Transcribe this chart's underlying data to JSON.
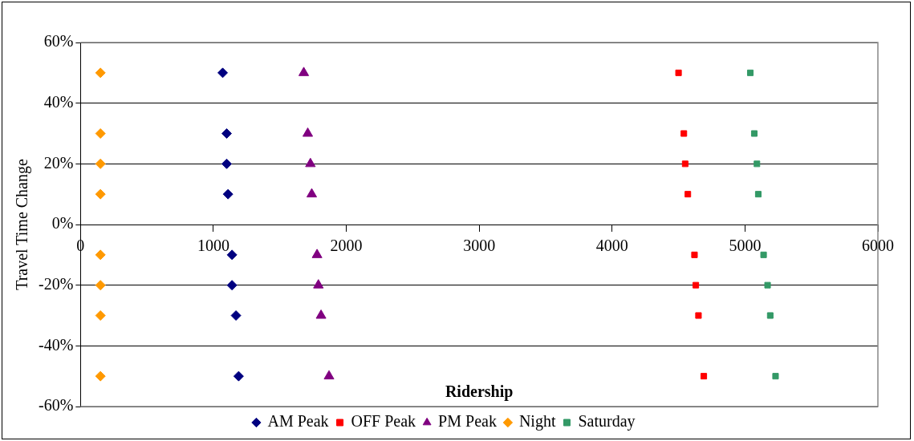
{
  "chart_data": {
    "type": "scatter",
    "xlabel": "Ridership",
    "ylabel": "Travel Time Change",
    "xlim": [
      0,
      6000
    ],
    "xticks": [
      0,
      1000,
      2000,
      3000,
      4000,
      5000,
      6000
    ],
    "ylim": [
      -60,
      60
    ],
    "yticks": [
      {
        "value": -60,
        "label": "-60%"
      },
      {
        "value": -40,
        "label": "-40%"
      },
      {
        "value": -20,
        "label": "-20%"
      },
      {
        "value": 0,
        "label": "0%"
      },
      {
        "value": 20,
        "label": "20%"
      },
      {
        "value": 40,
        "label": "40%"
      },
      {
        "value": 60,
        "label": "60%"
      }
    ],
    "grid": "y",
    "legend": "bottom",
    "series": [
      {
        "name": "AM Peak",
        "color": "#000080",
        "marker": "diamond",
        "x": [
          1070,
          1100,
          1100,
          1110,
          1140,
          1140,
          1170,
          1190
        ],
        "values": [
          50,
          30,
          20,
          10,
          -10,
          -20,
          -30,
          -50
        ]
      },
      {
        "name": "OFF Peak",
        "color": "#ff0000",
        "marker": "square",
        "x": [
          4500,
          4540,
          4550,
          4570,
          4620,
          4630,
          4650,
          4690
        ],
        "values": [
          50,
          30,
          20,
          10,
          -10,
          -20,
          -30,
          -50
        ]
      },
      {
        "name": "PM Peak",
        "color": "#800080",
        "marker": "triangle",
        "x": [
          1680,
          1710,
          1730,
          1740,
          1780,
          1790,
          1810,
          1870
        ],
        "values": [
          50,
          30,
          20,
          10,
          -10,
          -20,
          -30,
          -50
        ]
      },
      {
        "name": "Night",
        "color": "#ff9900",
        "marker": "diamond",
        "x": [
          150,
          150,
          150,
          150,
          150,
          150,
          150,
          150
        ],
        "values": [
          50,
          30,
          20,
          10,
          -10,
          -20,
          -30,
          -50
        ]
      },
      {
        "name": "Saturday",
        "color": "#339966",
        "marker": "square",
        "x": [
          5040,
          5070,
          5090,
          5100,
          5140,
          5170,
          5190,
          5230
        ],
        "values": [
          50,
          30,
          20,
          10,
          -10,
          -20,
          -30,
          -50
        ]
      }
    ]
  }
}
